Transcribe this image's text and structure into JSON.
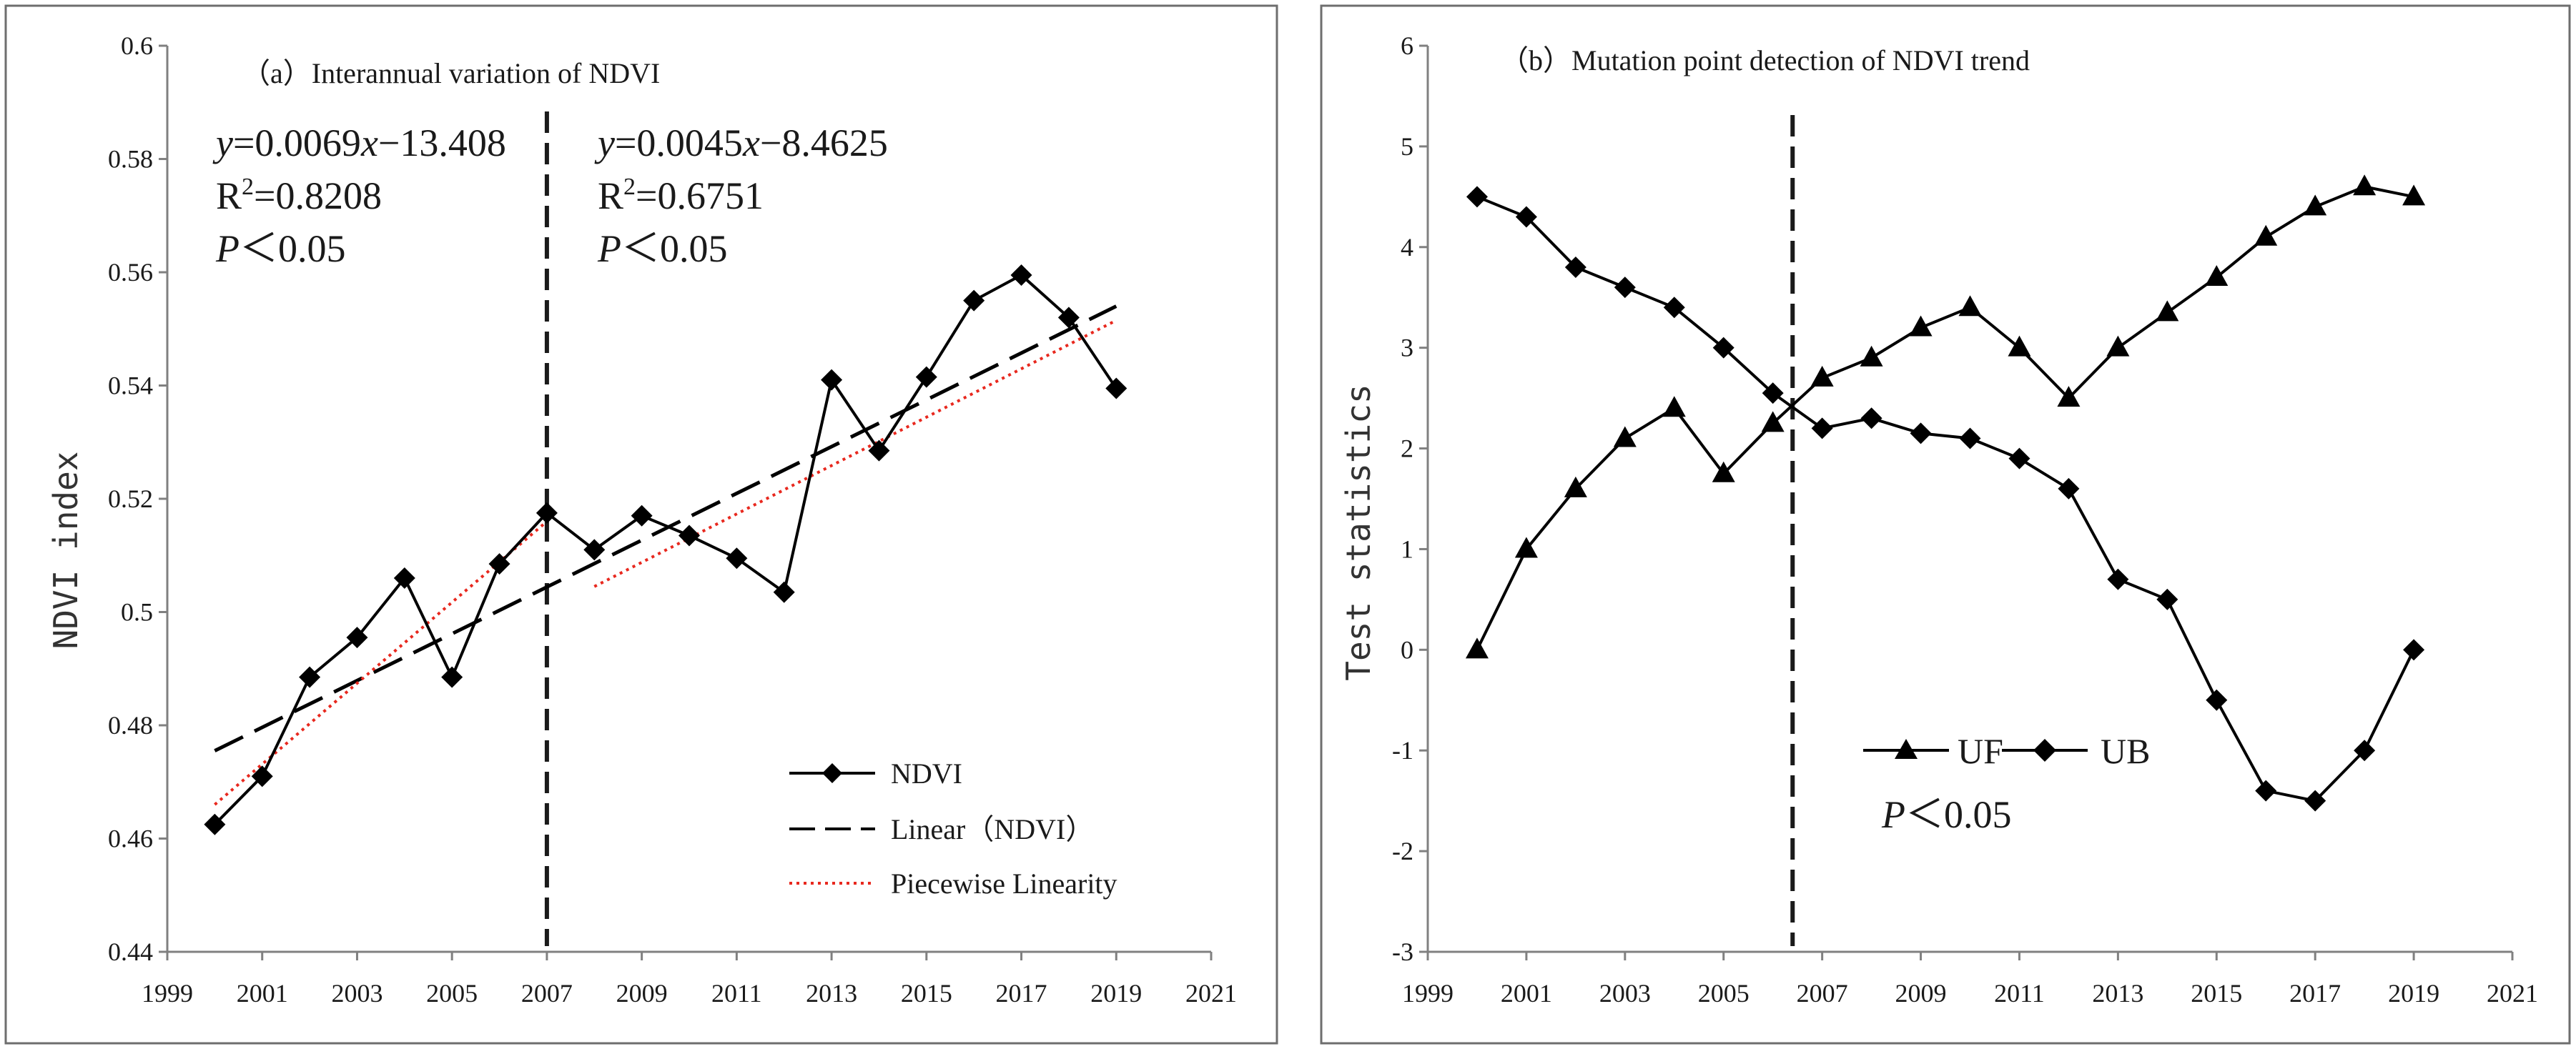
{
  "chart_data": [
    {
      "type": "line",
      "panel": "a",
      "title": "（a）Interannual variation of NDVI",
      "xlabel": "",
      "ylabel": "NDVI index",
      "xlim": [
        1999,
        2021
      ],
      "ylim": [
        0.44,
        0.6
      ],
      "x_ticks": [
        1999,
        2001,
        2003,
        2005,
        2007,
        2009,
        2011,
        2013,
        2015,
        2017,
        2019,
        2021
      ],
      "y_ticks": [
        0.44,
        0.46,
        0.48,
        0.5,
        0.52,
        0.54,
        0.56,
        0.58,
        0.6
      ],
      "y_tick_labels": [
        "0.44",
        "0.46",
        "0.48",
        "0.5",
        "0.52",
        "0.54",
        "0.56",
        "0.58",
        "0.6"
      ],
      "x": [
        2000,
        2001,
        2002,
        2003,
        2004,
        2005,
        2006,
        2007,
        2008,
        2009,
        2010,
        2011,
        2012,
        2013,
        2014,
        2015,
        2016,
        2017,
        2018,
        2019
      ],
      "series": [
        {
          "name": "NDVI",
          "values": [
            0.4625,
            0.471,
            0.4885,
            0.4955,
            0.506,
            0.4885,
            0.5085,
            0.5175,
            0.511,
            0.517,
            0.5135,
            0.5095,
            0.5035,
            0.541,
            0.5285,
            0.5415,
            0.555,
            0.5595,
            0.552,
            0.5395
          ]
        }
      ],
      "trend_lines": {
        "linear": {
          "name": "Linear（NDVI）",
          "x": [
            2000,
            2019
          ],
          "y": [
            0.4755,
            0.554
          ]
        },
        "piecewise": [
          {
            "x": [
              2000,
              2007
            ],
            "y": [
              0.466,
              0.516
            ]
          },
          {
            "x": [
              2008,
              2019
            ],
            "y": [
              0.5045,
              0.5515
            ]
          }
        ],
        "piecewise_name": "Piecewise Linearity"
      },
      "breakpoint_x": 2007,
      "equations": [
        {
          "line1_y": "y",
          "line1_rest": "=0.0069",
          "line1_x": "x",
          "line1_tail": "−13.408",
          "r2_base": "R",
          "r2_sup": "2",
          "r2_val": "=0.8208",
          "p_label": "P",
          "p_text": "＜0.05"
        },
        {
          "line1_y": "y",
          "line1_rest": "=0.0045",
          "line1_x": "x",
          "line1_tail": "−8.4625",
          "r2_base": "R",
          "r2_sup": "2",
          "r2_val": "=0.6751",
          "p_label": "P",
          "p_text": "＜0.05"
        }
      ],
      "legend": [
        "NDVI",
        "Linear（NDVI）",
        "Piecewise Linearity"
      ],
      "legend_position": "bottom-right",
      "colors": {
        "ndvi": "#000000",
        "linear": "#000000",
        "piecewise": "#e8281e",
        "breakpoint": "#1a1a1a"
      }
    },
    {
      "type": "line",
      "panel": "b",
      "title": "（b）Mutation point detection of NDVI trend",
      "xlabel": "",
      "ylabel": "Test statistics",
      "xlim": [
        1999,
        2021
      ],
      "ylim": [
        -3,
        6
      ],
      "x_ticks": [
        1999,
        2001,
        2003,
        2005,
        2007,
        2009,
        2011,
        2013,
        2015,
        2017,
        2019,
        2021
      ],
      "y_ticks": [
        -3,
        -2,
        -1,
        0,
        1,
        2,
        3,
        4,
        5,
        6
      ],
      "x": [
        2000,
        2001,
        2002,
        2003,
        2004,
        2005,
        2006,
        2007,
        2008,
        2009,
        2010,
        2011,
        2012,
        2013,
        2014,
        2015,
        2016,
        2017,
        2018,
        2019
      ],
      "series": [
        {
          "name": "UF",
          "marker": "triangle",
          "values": [
            0.0,
            1.0,
            1.6,
            2.1,
            2.4,
            1.75,
            2.25,
            2.7,
            2.9,
            3.2,
            3.4,
            3.0,
            2.5,
            3.0,
            3.35,
            3.7,
            4.1,
            4.4,
            4.6,
            4.5
          ]
        },
        {
          "name": "UB",
          "marker": "diamond",
          "values": [
            4.5,
            4.3,
            3.8,
            3.6,
            3.4,
            3.0,
            2.55,
            2.2,
            2.3,
            2.15,
            2.1,
            1.9,
            1.6,
            0.7,
            0.5,
            -0.5,
            -1.4,
            -1.5,
            -1.0,
            0.0
          ]
        }
      ],
      "breakpoint_x": 2006.4,
      "annotation": {
        "p_label": "P",
        "p_text": "＜0.05"
      },
      "legend": [
        "UF",
        "UB"
      ],
      "legend_position": "bottom-center",
      "colors": {
        "uf": "#000000",
        "ub": "#000000",
        "breakpoint": "#1a1a1a"
      }
    }
  ]
}
